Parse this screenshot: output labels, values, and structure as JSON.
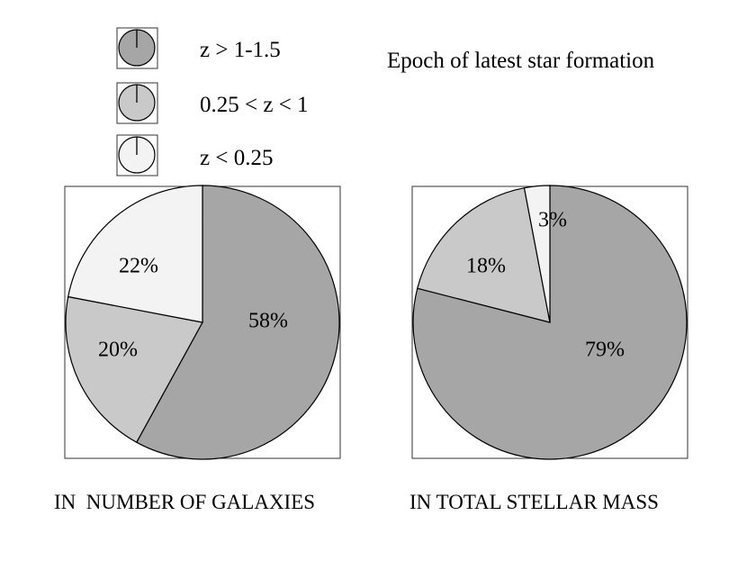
{
  "chart_data": [
    {
      "type": "pie",
      "title": "",
      "caption": "IN  NUMBER OF GALAXIES",
      "slices": [
        {
          "label": "z > 1-1.5",
          "value": 58,
          "text": "58%"
        },
        {
          "label": "0.25 < z < 1",
          "value": 20,
          "text": "20%"
        },
        {
          "label": "z < 0.25",
          "value": 22,
          "text": "22%"
        }
      ]
    },
    {
      "type": "pie",
      "title": "",
      "caption": "IN TOTAL STELLAR MASS",
      "slices": [
        {
          "label": "z > 1-1.5",
          "value": 79,
          "text": "79%"
        },
        {
          "label": "0.25 < z < 1",
          "value": 18,
          "text": "18%"
        },
        {
          "label": "z < 0.25",
          "value": 3,
          "text": "3%"
        }
      ]
    }
  ],
  "legend": {
    "title": "Epoch of latest star formation",
    "placement": "top",
    "items": [
      {
        "label": "z > 1-1.5",
        "color": "#a6a6a6"
      },
      {
        "label": "0.25 < z < 1",
        "color": "#c9c9c9"
      },
      {
        "label": "z < 0.25",
        "color": "#f3f3f3"
      }
    ]
  },
  "colors": {
    "stroke": "#000000",
    "frame": "#333333"
  }
}
